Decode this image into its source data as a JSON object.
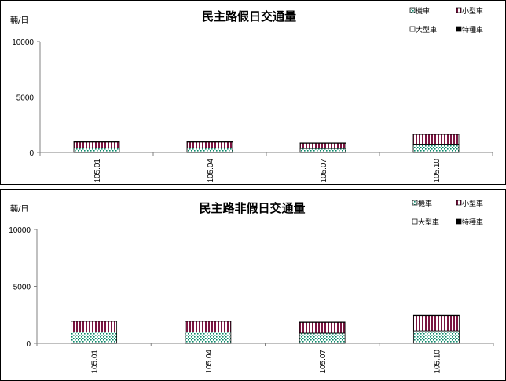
{
  "legend": {
    "items": [
      {
        "label": "機車",
        "pattern": "dots-green"
      },
      {
        "label": "小型車",
        "pattern": "stripes-maroon"
      },
      {
        "label": "大型車",
        "pattern": "white"
      },
      {
        "label": "特種車",
        "pattern": "black"
      }
    ]
  },
  "colors": {
    "stripe": "#7a1440",
    "dot": "#0b8a6a",
    "axis": "#808080"
  },
  "chart_data": [
    {
      "type": "bar",
      "stacked": true,
      "title": "民主路假日交通量",
      "ylabel": "輛/日",
      "xlabel": "",
      "categories": [
        "105.01",
        "105.04",
        "105.07",
        "105.10"
      ],
      "ylim": [
        0,
        10000
      ],
      "yticks": [
        0,
        5000,
        10000
      ],
      "legend_position": "top-right",
      "grid": false,
      "series": [
        {
          "name": "機車",
          "values": [
            400,
            400,
            350,
            750
          ]
        },
        {
          "name": "小型車",
          "values": [
            550,
            550,
            500,
            900
          ]
        },
        {
          "name": "大型車",
          "values": [
            10,
            10,
            10,
            10
          ]
        },
        {
          "name": "特種車",
          "values": [
            0,
            0,
            0,
            0
          ]
        }
      ]
    },
    {
      "type": "bar",
      "stacked": true,
      "title": "民主路非假日交通量",
      "ylabel": "輛/日",
      "xlabel": "",
      "categories": [
        "105.01",
        "105.04",
        "105.07",
        "105.10"
      ],
      "ylim": [
        0,
        10000
      ],
      "yticks": [
        0,
        5000,
        10000
      ],
      "legend_position": "top-right",
      "grid": false,
      "series": [
        {
          "name": "機車",
          "values": [
            1000,
            1000,
            900,
            1100
          ]
        },
        {
          "name": "小型車",
          "values": [
            950,
            950,
            950,
            1350
          ]
        },
        {
          "name": "大型車",
          "values": [
            20,
            20,
            20,
            20
          ]
        },
        {
          "name": "特種車",
          "values": [
            0,
            0,
            0,
            0
          ]
        }
      ]
    }
  ]
}
